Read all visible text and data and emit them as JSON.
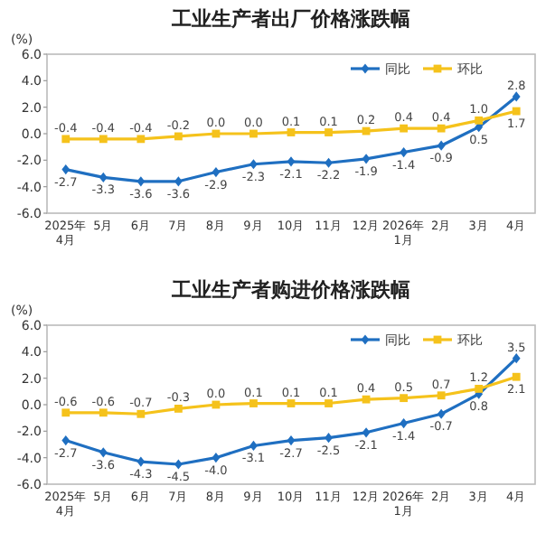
{
  "chart_data": [
    {
      "type": "line",
      "title": "工业生产者出厂价格涨跌幅",
      "ylabel": "(%)",
      "categories": [
        "2025年\n4月",
        "5月",
        "6月",
        "7月",
        "8月",
        "9月",
        "10月",
        "11月",
        "12月",
        "2026年\n1月",
        "2月",
        "3月",
        "4月"
      ],
      "ylim": [
        -6,
        6
      ],
      "yticks": [
        {
          "value": -6,
          "label": "-6.0"
        },
        {
          "value": -4,
          "label": "-4.0"
        },
        {
          "value": -2,
          "label": "-2.0"
        },
        {
          "value": 0,
          "label": "0.0"
        },
        {
          "value": 2,
          "label": "2.0"
        },
        {
          "value": 4,
          "label": "4.0"
        },
        {
          "value": 6,
          "label": "6.0"
        }
      ],
      "grid": false,
      "legend": "top right",
      "series": [
        {
          "name": "同比",
          "color": "#1f6fc1",
          "marker": "diamond",
          "values": [
            -2.7,
            -3.3,
            -3.6,
            -3.6,
            -2.9,
            -2.3,
            -2.1,
            -2.2,
            -1.9,
            -1.4,
            -0.9,
            0.5,
            2.8
          ],
          "value_labels": [
            "-2.7",
            "-3.3",
            "-3.6",
            "-3.6",
            "-2.9",
            "-2.3",
            "-2.1",
            "-2.2",
            "-1.9",
            "-1.4",
            "-0.9",
            "0.5",
            "2.8"
          ]
        },
        {
          "name": "环比",
          "color": "#f5c21b",
          "marker": "square",
          "values": [
            -0.4,
            -0.4,
            -0.4,
            -0.2,
            0.0,
            0.0,
            0.1,
            0.1,
            0.2,
            0.4,
            0.4,
            1.0,
            1.7
          ],
          "value_labels": [
            "-0.4",
            "-0.4",
            "-0.4",
            "-0.2",
            "0.0",
            "0.0",
            "0.1",
            "0.1",
            "0.2",
            "0.4",
            "0.4",
            "1.0",
            "1.7"
          ]
        }
      ]
    },
    {
      "type": "line",
      "title": "工业生产者购进价格涨跌幅",
      "ylabel": "(%)",
      "categories": [
        "2025年\n4月",
        "5月",
        "6月",
        "7月",
        "8月",
        "9月",
        "10月",
        "11月",
        "12月",
        "2026年\n1月",
        "2月",
        "3月",
        "4月"
      ],
      "ylim": [
        -6,
        6
      ],
      "yticks": [
        {
          "value": -6,
          "label": "-6.0"
        },
        {
          "value": -4,
          "label": "-4.0"
        },
        {
          "value": -2,
          "label": "-2.0"
        },
        {
          "value": 0,
          "label": "0.0"
        },
        {
          "value": 2,
          "label": "2.0"
        },
        {
          "value": 4,
          "label": "4.0"
        },
        {
          "value": 6,
          "label": "6.0"
        }
      ],
      "grid": false,
      "legend": "top right",
      "series": [
        {
          "name": "同比",
          "color": "#1f6fc1",
          "marker": "diamond",
          "values": [
            -2.7,
            -3.6,
            -4.3,
            -4.5,
            -4.0,
            -3.1,
            -2.7,
            -2.5,
            -2.1,
            -1.4,
            -0.7,
            0.8,
            3.5
          ],
          "value_labels": [
            "-2.7",
            "-3.6",
            "-4.3",
            "-4.5",
            "-4.0",
            "-3.1",
            "-2.7",
            "-2.5",
            "-2.1",
            "-1.4",
            "-0.7",
            "0.8",
            "3.5"
          ]
        },
        {
          "name": "环比",
          "color": "#f5c21b",
          "marker": "square",
          "values": [
            -0.6,
            -0.6,
            -0.7,
            -0.3,
            0.0,
            0.1,
            0.1,
            0.1,
            0.4,
            0.5,
            0.7,
            1.2,
            2.1
          ],
          "value_labels": [
            "-0.6",
            "-0.6",
            "-0.7",
            "-0.3",
            "0.0",
            "0.1",
            "0.1",
            "0.1",
            "0.4",
            "0.5",
            "0.7",
            "1.2",
            "2.1"
          ]
        }
      ]
    }
  ]
}
